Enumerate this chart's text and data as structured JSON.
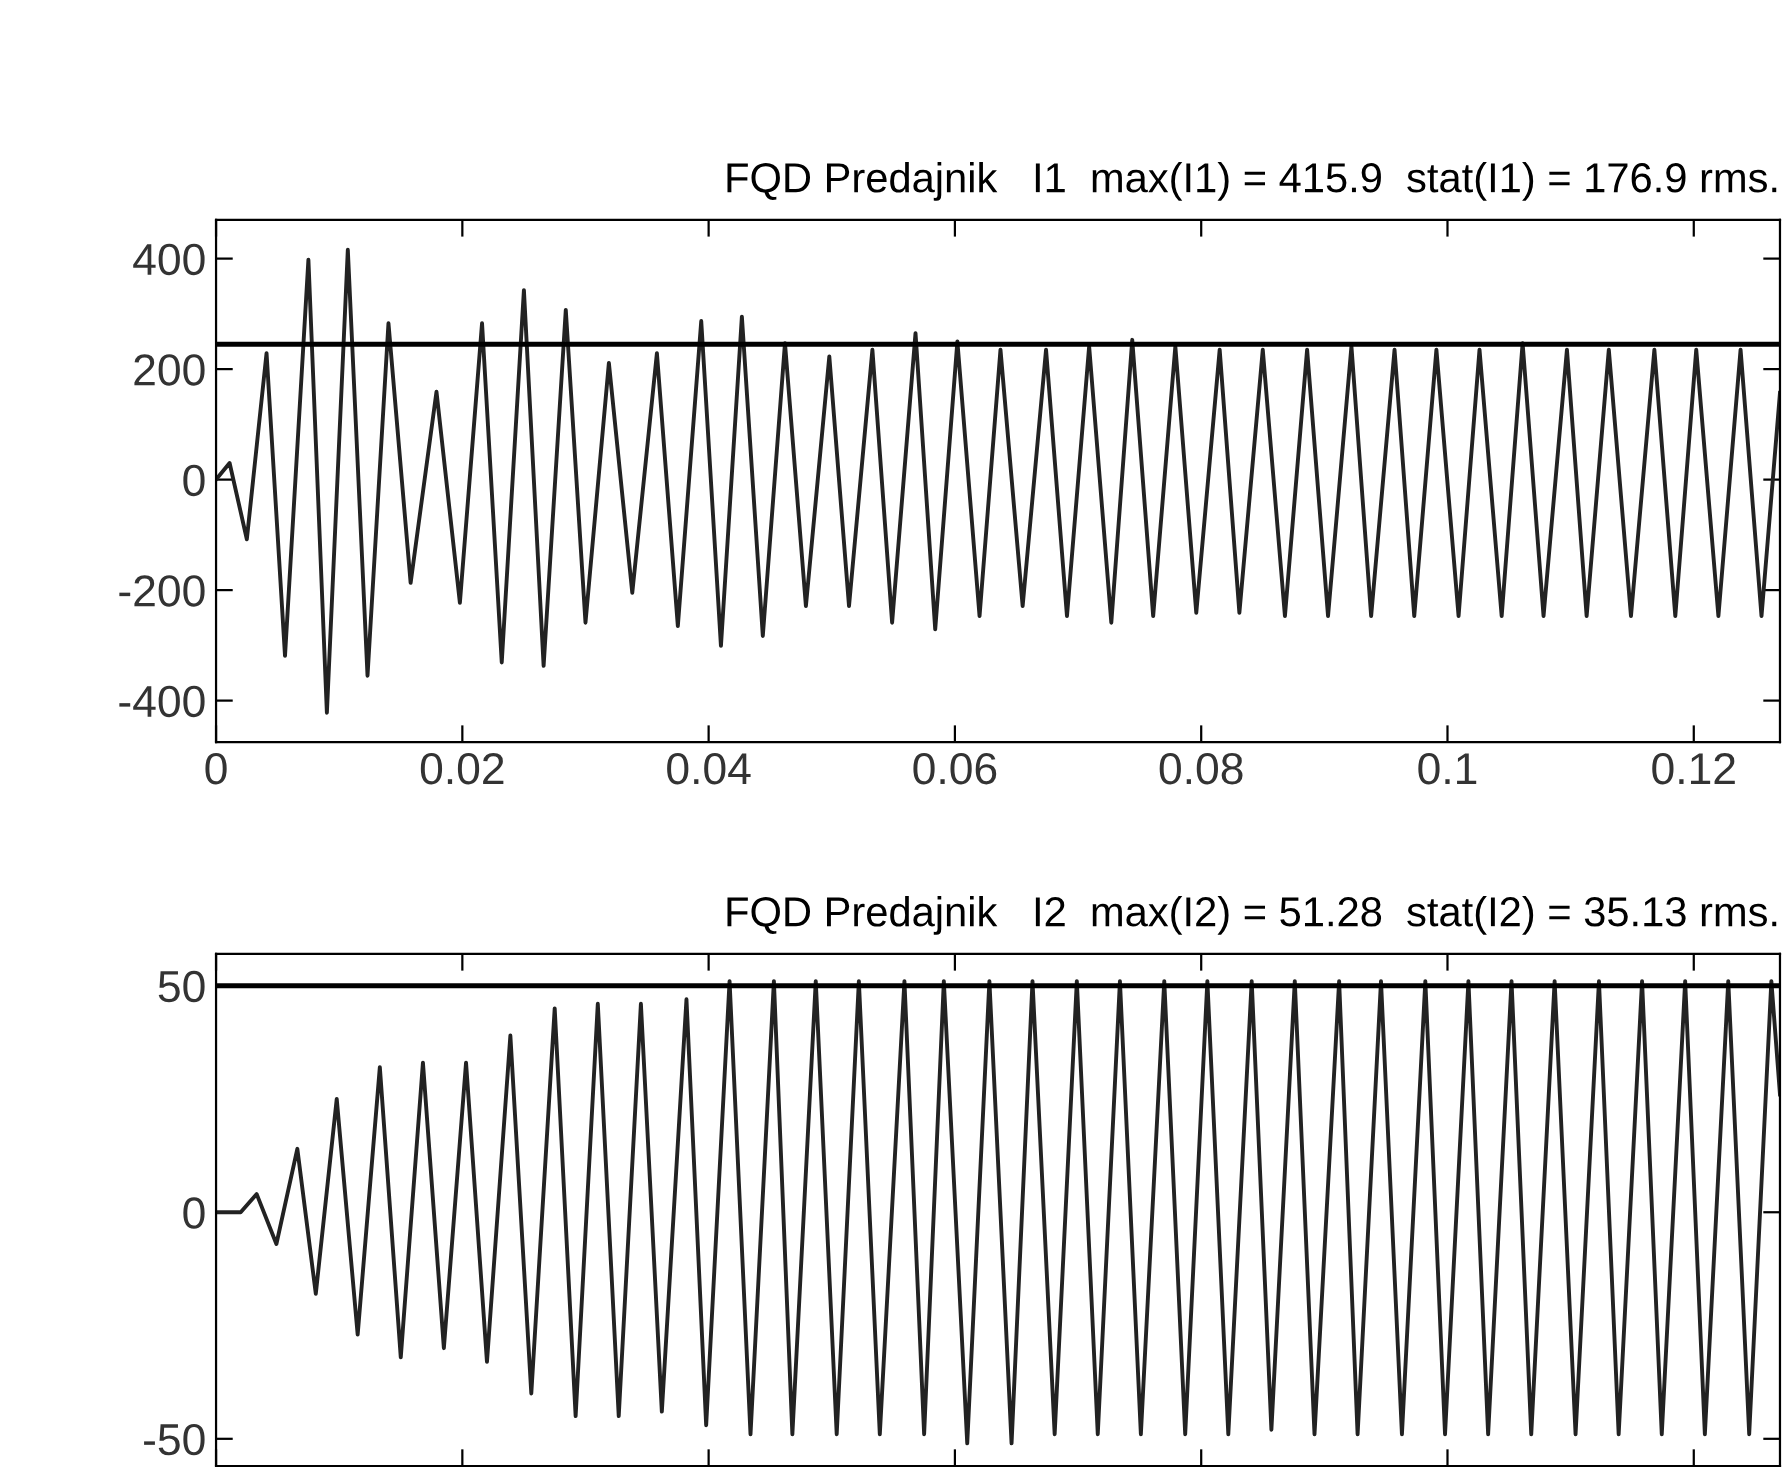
{
  "chart_data": [
    {
      "type": "line",
      "title": "FQD Predajnik   I1  max(I1) = 415.9  stat(I1) = 176.9 rms.",
      "x": [
        0,
        0.0011,
        0.0025,
        0.0041,
        0.0056,
        0.0075,
        0.009,
        0.0107,
        0.0123,
        0.014,
        0.0158,
        0.0179,
        0.0198,
        0.0216,
        0.0232,
        0.025,
        0.0266,
        0.0284,
        0.03,
        0.0319,
        0.0338,
        0.0358,
        0.0375,
        0.0394,
        0.041,
        0.0427,
        0.0444,
        0.0462,
        0.0479,
        0.0498,
        0.0514,
        0.0533,
        0.0549,
        0.0568,
        0.0584,
        0.0602,
        0.062,
        0.0637,
        0.0655,
        0.0674,
        0.0691,
        0.0709,
        0.0727,
        0.0744,
        0.0761,
        0.0779,
        0.0796,
        0.0815,
        0.0831,
        0.085,
        0.0868,
        0.0886,
        0.0903,
        0.0922,
        0.0938,
        0.0957,
        0.0973,
        0.0991,
        0.1009,
        0.1026,
        0.1044,
        0.1061,
        0.1078,
        0.1097,
        0.1113,
        0.1131,
        0.1149,
        0.1168,
        0.1185,
        0.1202,
        0.122,
        0.1238,
        0.1255,
        0.127
      ],
      "series": [
        {
          "color": "#222222",
          "values": [
            0,
            30,
            -108,
            229,
            -319,
            398,
            -422,
            416,
            -355,
            283,
            -187,
            159,
            -223,
            283,
            -331,
            343,
            -337,
            307,
            -259,
            211,
            -205,
            229,
            -265,
            287,
            -301,
            295,
            -283,
            247,
            -229,
            223,
            -229,
            235,
            -259,
            265,
            -271,
            250,
            -247,
            235,
            -229,
            235,
            -247,
            241,
            -259,
            253,
            -247,
            241,
            -241,
            235,
            -241,
            235,
            -247,
            235,
            -247,
            241,
            -247,
            235,
            -247,
            235,
            -247,
            235,
            -247,
            247,
            -247,
            235,
            -247,
            235,
            -247,
            235,
            -247,
            235,
            -247,
            235,
            -247,
            157
          ]
        }
      ],
      "xlim": [
        0,
        0.127
      ],
      "ylim": [
        -475,
        470
      ],
      "xticks": [
        0,
        0.02,
        0.04,
        0.06,
        0.08,
        0.1,
        0.12
      ],
      "yticks": [
        -400,
        -200,
        0,
        200,
        400
      ],
      "ref_lines": [
        {
          "axis": "y",
          "value": 245,
          "color": "#000000"
        }
      ]
    },
    {
      "type": "line",
      "title": "FQD Predajnik   I2  max(I2) = 51.28  stat(I2) = 35.13 rms.",
      "x": [
        0,
        0.002,
        0.0033,
        0.0049,
        0.0066,
        0.0081,
        0.0098,
        0.0115,
        0.0133,
        0.015,
        0.0168,
        0.0185,
        0.0203,
        0.022,
        0.0239,
        0.0256,
        0.0275,
        0.0292,
        0.031,
        0.0327,
        0.0345,
        0.0362,
        0.0382,
        0.0398,
        0.0417,
        0.0434,
        0.0453,
        0.0468,
        0.0487,
        0.0504,
        0.0522,
        0.0539,
        0.0559,
        0.0575,
        0.0591,
        0.061,
        0.0628,
        0.0646,
        0.0663,
        0.0681,
        0.0699,
        0.0716,
        0.0734,
        0.0751,
        0.077,
        0.0787,
        0.0805,
        0.0822,
        0.0841,
        0.0857,
        0.0876,
        0.0892,
        0.0912,
        0.0927,
        0.0946,
        0.0963,
        0.0982,
        0.0998,
        0.1017,
        0.1033,
        0.1052,
        0.1068,
        0.1087,
        0.1104,
        0.1123,
        0.1139,
        0.1158,
        0.1174,
        0.1193,
        0.1209,
        0.1228,
        0.1245,
        0.1263,
        0.127
      ],
      "series": [
        {
          "color": "#222222",
          "values": [
            0,
            0,
            4,
            -7,
            14,
            -18,
            25,
            -27,
            32,
            -32,
            33,
            -30,
            33,
            -33,
            39,
            -40,
            45,
            -45,
            46,
            -45,
            46,
            -44,
            47,
            -47,
            51,
            -49,
            51,
            -49,
            51,
            -49,
            51,
            -49,
            51,
            -49,
            51,
            -51,
            51,
            -51,
            51,
            -49,
            51,
            -49,
            51,
            -49,
            51,
            -49,
            51,
            -49,
            51,
            -48,
            51,
            -49,
            51,
            -49,
            51,
            -49,
            51,
            -49,
            51,
            -49,
            51,
            -49,
            51,
            -49,
            51,
            -49,
            51,
            -49,
            51,
            -49,
            51,
            -49,
            51,
            26
          ]
        }
      ],
      "xlim": [
        0,
        0.127
      ],
      "ylim": [
        -56,
        57
      ],
      "xticks": [
        0,
        0.02,
        0.04,
        0.06,
        0.08,
        0.1,
        0.12
      ],
      "yticks": [
        -50,
        0,
        50
      ],
      "tick_labels": "y",
      "ref_lines": [
        {
          "axis": "y",
          "value": 50,
          "color": "#000000"
        }
      ]
    }
  ]
}
